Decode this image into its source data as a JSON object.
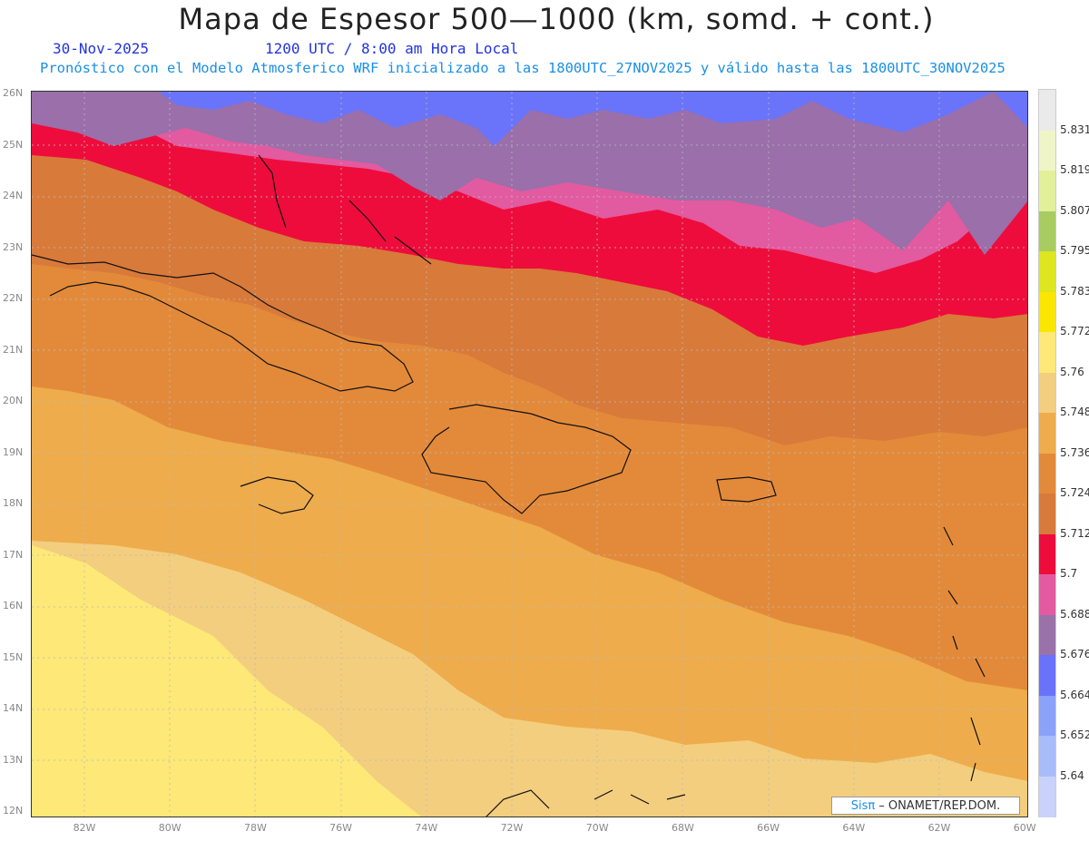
{
  "header": {
    "title": "Mapa de Espesor 500—1000 (km, somd. + cont.)",
    "date": "30-Nov-2025",
    "time": "1200 UTC / 8:00 am Hora Local",
    "forecast": "Pronóstico con el Modelo Atmosferico WRF inicializado a las 1800UTC_27NOV2025 y válido hasta las  1800UTC_30NOV2025"
  },
  "axes": {
    "lat_labels": [
      "26N",
      "25N",
      "24N",
      "23N",
      "22N",
      "21N",
      "20N",
      "19N",
      "18N",
      "17N",
      "16N",
      "15N",
      "14N",
      "13N",
      "12N"
    ],
    "lon_labels": [
      "82W",
      "80W",
      "78W",
      "76W",
      "74W",
      "72W",
      "70W",
      "68W",
      "66W",
      "64W",
      "62W",
      "60W"
    ]
  },
  "legend": {
    "labels": [
      "5.831",
      "5.819",
      "5.807",
      "5.795",
      "5.783",
      "5.772",
      "5.76",
      "5.748",
      "5.736",
      "5.724",
      "5.712",
      "5.7",
      "5.688",
      "5.676",
      "5.664",
      "5.652",
      "5.64"
    ],
    "colors": [
      "#eaeaea",
      "#f0f5c8",
      "#e2f09a",
      "#a8cc60",
      "#dde61e",
      "#fae600",
      "#fde878",
      "#f3ce7e",
      "#eeac4c",
      "#e38a3a",
      "#d87a3a",
      "#ee0c3c",
      "#e45aa0",
      "#9a72aa",
      "#6a72fa",
      "#8aa2fa",
      "#a8bcfa",
      "#c8d2fa"
    ]
  },
  "credit": {
    "brand": "Sisπ",
    "text": "– ONAMET/REP.DOM."
  },
  "map_colors": {
    "blue": "#6a74fa",
    "purple": "#9a6faa",
    "pink": "#e25aa0",
    "red": "#ee0c3c",
    "dark_orange": "#d87a3a",
    "orange": "#e38a3a",
    "light_orange": "#eeac4c",
    "tan": "#f3ce7e",
    "yellow": "#fde878"
  }
}
